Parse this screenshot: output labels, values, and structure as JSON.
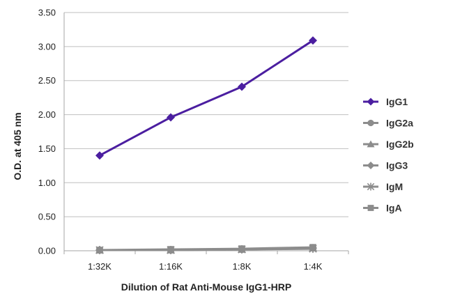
{
  "chart_data": {
    "type": "line",
    "title": "",
    "xlabel": "Dilution of Rat Anti-Mouse IgG1-HRP",
    "ylabel": "O.D. at 405 nm",
    "categories": [
      "1:32K",
      "1:16K",
      "1:8K",
      "1:4K"
    ],
    "ylim": [
      0,
      3.5
    ],
    "yticks": [
      "0.00",
      "0.50",
      "1.00",
      "1.50",
      "2.00",
      "2.50",
      "3.00",
      "3.50"
    ],
    "grid": "horizontal",
    "legend_position": "right",
    "series": [
      {
        "name": "IgG1",
        "values": [
          1.4,
          1.96,
          2.41,
          3.09
        ],
        "color": "#4b1ea0",
        "marker": "diamond"
      },
      {
        "name": "IgG2a",
        "values": [
          0.01,
          0.01,
          0.02,
          0.04
        ],
        "color": "#8c8c8c",
        "marker": "circle"
      },
      {
        "name": "IgG2b",
        "values": [
          0.01,
          0.01,
          0.02,
          0.04
        ],
        "color": "#8c8c8c",
        "marker": "triangle"
      },
      {
        "name": "IgG3",
        "values": [
          0.01,
          0.01,
          0.02,
          0.04
        ],
        "color": "#8c8c8c",
        "marker": "diamond"
      },
      {
        "name": "IgM",
        "values": [
          0.01,
          0.01,
          0.02,
          0.03
        ],
        "color": "#8c8c8c",
        "marker": "star"
      },
      {
        "name": "IgA",
        "values": [
          0.01,
          0.02,
          0.03,
          0.05
        ],
        "color": "#8c8c8c",
        "marker": "square"
      }
    ]
  }
}
